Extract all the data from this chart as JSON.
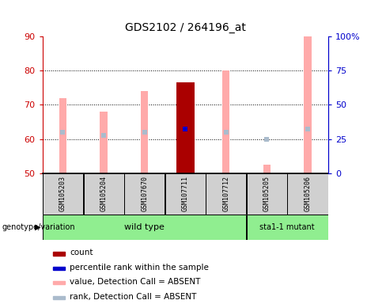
{
  "title": "GDS2102 / 264196_at",
  "samples": [
    "GSM105203",
    "GSM105204",
    "GSM107670",
    "GSM107711",
    "GSM107712",
    "GSM105205",
    "GSM105206"
  ],
  "groups": {
    "wild type": [
      0,
      1,
      2,
      3,
      4
    ],
    "sta1-1 mutant": [
      5,
      6
    ]
  },
  "ylim_left": [
    50,
    90
  ],
  "ylim_right": [
    0,
    100
  ],
  "yticks_left": [
    50,
    60,
    70,
    80,
    90
  ],
  "yticks_right": [
    0,
    25,
    50,
    75,
    100
  ],
  "ytick_labels_right": [
    "0",
    "25",
    "50",
    "75",
    "100%"
  ],
  "left_axis_color": "#cc0000",
  "right_axis_color": "#0000cc",
  "pink_bar_color": "#ffaaaa",
  "lightblue_marker_color": "#aabbcc",
  "red_bar_color": "#aa0000",
  "blue_marker_color": "#0000cc",
  "value_bars": [
    72.0,
    68.0,
    74.0,
    76.5,
    80.0,
    52.5,
    90.0
  ],
  "rank_markers": [
    62.0,
    61.0,
    62.0,
    63.0,
    62.0,
    60.0,
    63.0
  ],
  "count_bar_index": 3,
  "percentile_marker_value": 63.0,
  "bg_gray": "#d0d0d0",
  "group_light_green": "#90ee90",
  "legend_items": [
    {
      "label": "count",
      "color": "#aa0000"
    },
    {
      "label": "percentile rank within the sample",
      "color": "#0000cc"
    },
    {
      "label": "value, Detection Call = ABSENT",
      "color": "#ffaaaa"
    },
    {
      "label": "rank, Detection Call = ABSENT",
      "color": "#aabbcc"
    }
  ]
}
